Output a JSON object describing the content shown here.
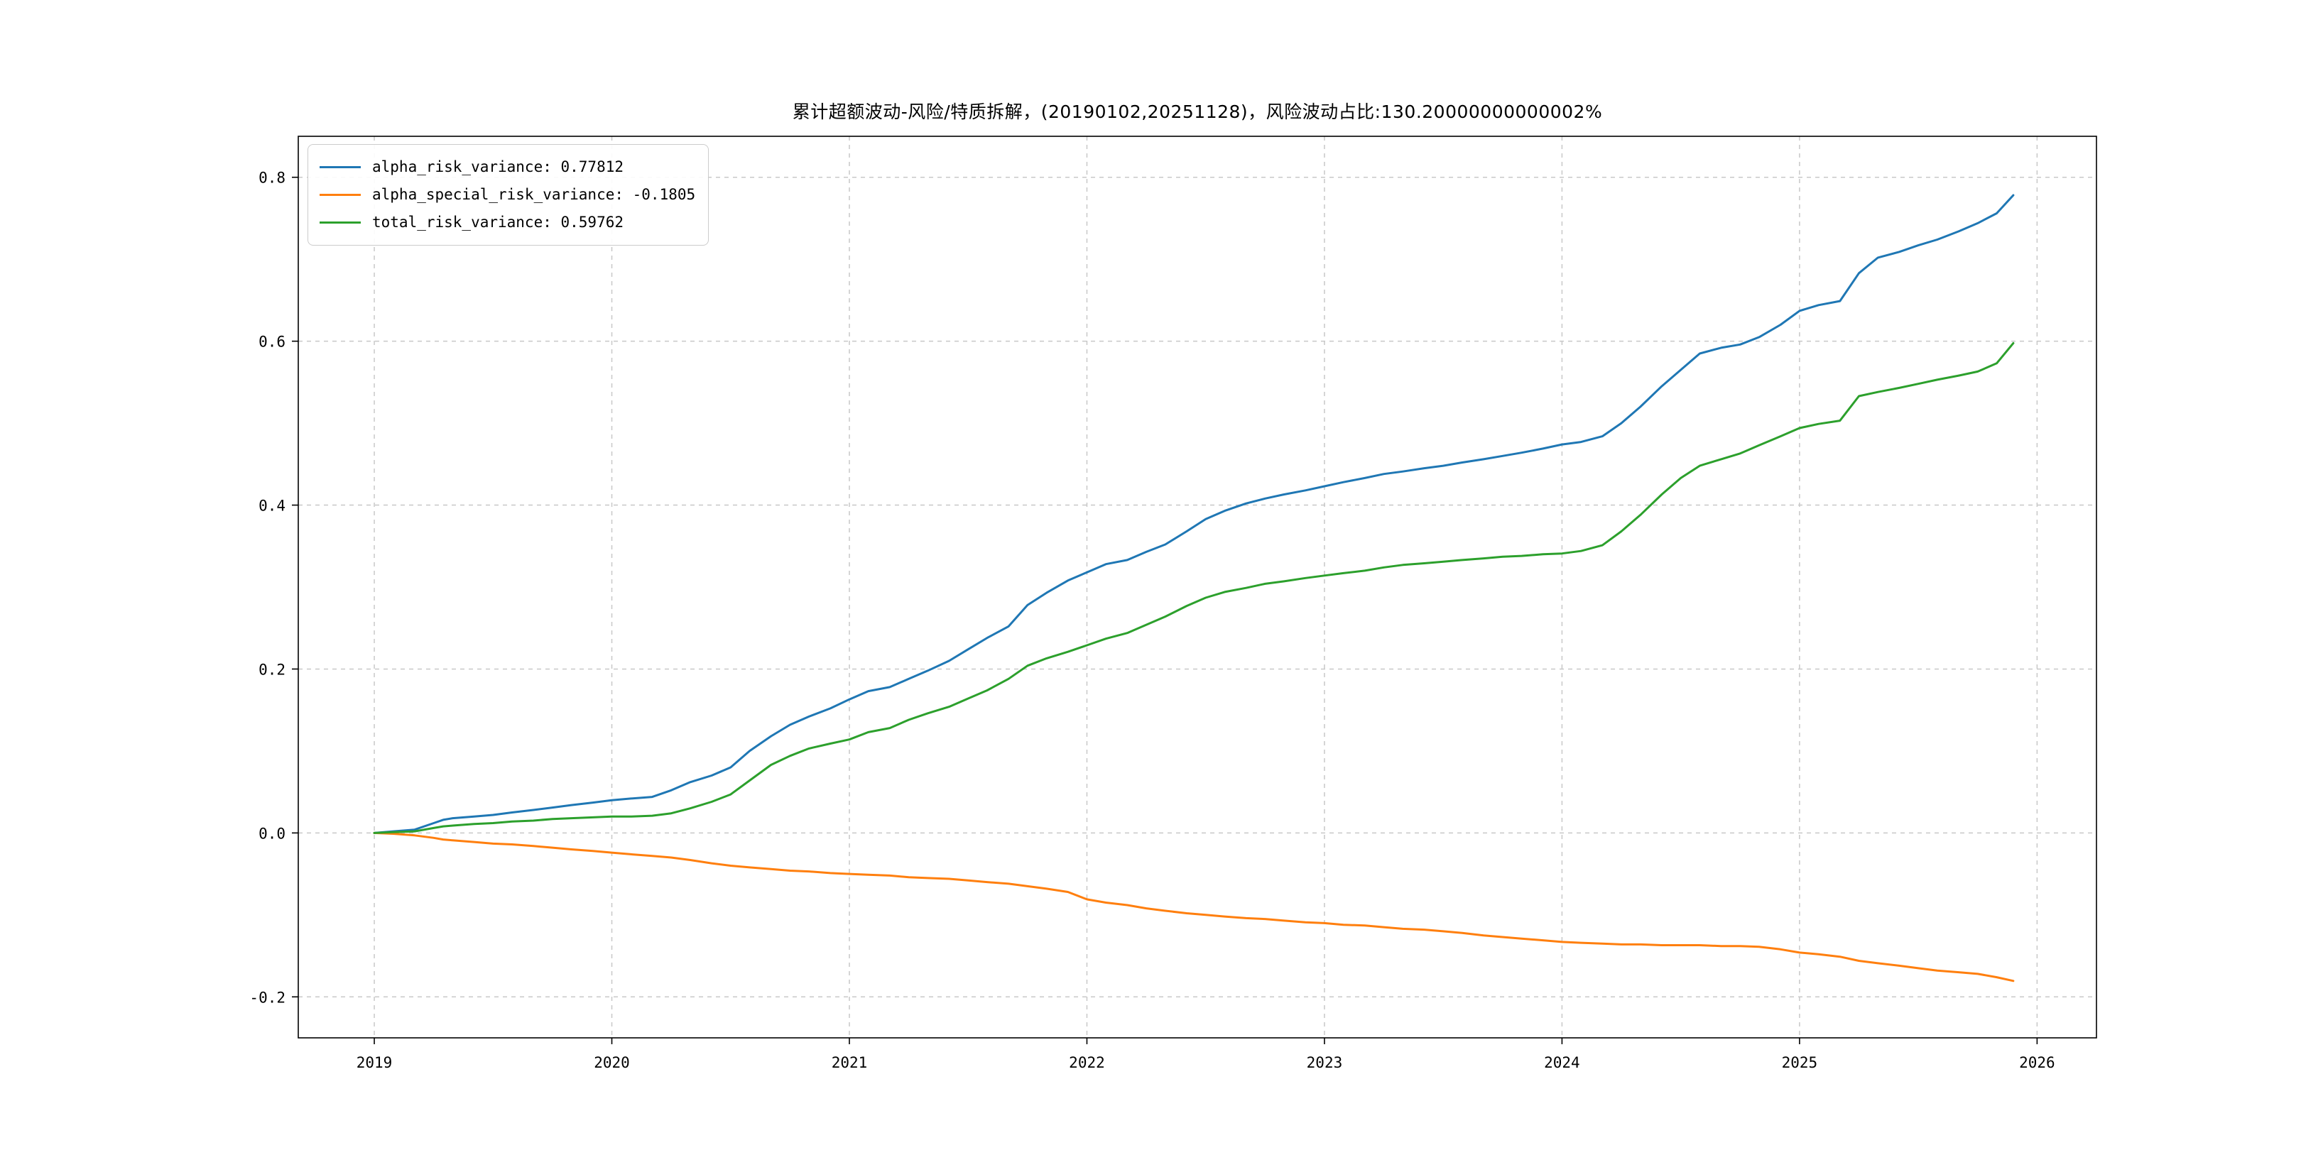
{
  "page": {
    "background": "#ffffff"
  },
  "chart_data": {
    "type": "line",
    "title": "累计超额波动-风险/特质拆解，(20190102,20251128)，风险波动占比:130.20000000000002%",
    "xlabel": "",
    "ylabel": "",
    "xlim": [
      2018.68,
      2026.25
    ],
    "ylim": [
      -0.25,
      0.85
    ],
    "x_ticks": [
      2019,
      2020,
      2021,
      2022,
      2023,
      2024,
      2025,
      2026
    ],
    "x_tick_labels": [
      "2019",
      "2020",
      "2021",
      "2022",
      "2023",
      "2024",
      "2025",
      "2026"
    ],
    "y_ticks": [
      -0.2,
      0.0,
      0.2,
      0.4,
      0.6,
      0.8
    ],
    "y_tick_labels": [
      "-0.2",
      "0.0",
      "0.2",
      "0.4",
      "0.6",
      "0.8"
    ],
    "grid": true,
    "grid_style": "dashed",
    "grid_color": "#c8c8c8",
    "legend_position": "upper-left",
    "date_range": "20190102-20251128",
    "risk_ratio_pct": "130.20000000000002%",
    "series": [
      {
        "name": "alpha_risk_variance",
        "legend_label": "alpha_risk_variance: 0.77812",
        "final_value": 0.77812,
        "color": "#1f77b4",
        "x": [
          2019.0,
          2019.08,
          2019.17,
          2019.25,
          2019.29,
          2019.33,
          2019.42,
          2019.5,
          2019.58,
          2019.67,
          2019.75,
          2019.83,
          2019.92,
          2020.0,
          2020.08,
          2020.17,
          2020.25,
          2020.33,
          2020.42,
          2020.5,
          2020.58,
          2020.67,
          2020.75,
          2020.83,
          2020.92,
          2021.0,
          2021.08,
          2021.17,
          2021.25,
          2021.33,
          2021.42,
          2021.5,
          2021.58,
          2021.67,
          2021.75,
          2021.83,
          2021.92,
          2022.0,
          2022.08,
          2022.17,
          2022.25,
          2022.33,
          2022.42,
          2022.5,
          2022.58,
          2022.67,
          2022.75,
          2022.83,
          2022.92,
          2023.0,
          2023.08,
          2023.17,
          2023.25,
          2023.33,
          2023.42,
          2023.5,
          2023.58,
          2023.67,
          2023.75,
          2023.83,
          2023.92,
          2024.0,
          2024.08,
          2024.17,
          2024.25,
          2024.33,
          2024.42,
          2024.5,
          2024.58,
          2024.67,
          2024.75,
          2024.83,
          2024.92,
          2025.0,
          2025.08,
          2025.17,
          2025.25,
          2025.33,
          2025.42,
          2025.5,
          2025.58,
          2025.67,
          2025.75,
          2025.83,
          2025.9
        ],
        "y": [
          0.0,
          0.002,
          0.004,
          0.012,
          0.016,
          0.018,
          0.02,
          0.022,
          0.025,
          0.028,
          0.031,
          0.034,
          0.037,
          0.04,
          0.042,
          0.044,
          0.052,
          0.062,
          0.07,
          0.08,
          0.1,
          0.118,
          0.132,
          0.142,
          0.152,
          0.163,
          0.173,
          0.178,
          0.188,
          0.198,
          0.21,
          0.224,
          0.238,
          0.252,
          0.278,
          0.293,
          0.308,
          0.318,
          0.328,
          0.333,
          0.343,
          0.352,
          0.368,
          0.383,
          0.393,
          0.402,
          0.408,
          0.413,
          0.418,
          0.423,
          0.428,
          0.433,
          0.438,
          0.441,
          0.445,
          0.448,
          0.452,
          0.456,
          0.46,
          0.464,
          0.469,
          0.474,
          0.477,
          0.484,
          0.5,
          0.52,
          0.545,
          0.565,
          0.585,
          0.592,
          0.596,
          0.605,
          0.62,
          0.637,
          0.644,
          0.649,
          0.683,
          0.702,
          0.709,
          0.717,
          0.724,
          0.734,
          0.744,
          0.756,
          0.77812
        ]
      },
      {
        "name": "alpha_special_risk_variance",
        "legend_label": "alpha_special_risk_variance: -0.1805",
        "final_value": -0.1805,
        "color": "#ff7f0e",
        "x": [
          2019.0,
          2019.08,
          2019.17,
          2019.25,
          2019.29,
          2019.33,
          2019.42,
          2019.5,
          2019.58,
          2019.67,
          2019.75,
          2019.83,
          2019.92,
          2020.0,
          2020.08,
          2020.17,
          2020.25,
          2020.33,
          2020.42,
          2020.5,
          2020.58,
          2020.67,
          2020.75,
          2020.83,
          2020.92,
          2021.0,
          2021.08,
          2021.17,
          2021.25,
          2021.33,
          2021.42,
          2021.5,
          2021.58,
          2021.67,
          2021.75,
          2021.83,
          2021.92,
          2022.0,
          2022.08,
          2022.17,
          2022.25,
          2022.33,
          2022.42,
          2022.5,
          2022.58,
          2022.67,
          2022.75,
          2022.83,
          2022.92,
          2023.0,
          2023.08,
          2023.17,
          2023.25,
          2023.33,
          2023.42,
          2023.5,
          2023.58,
          2023.67,
          2023.75,
          2023.83,
          2023.92,
          2024.0,
          2024.08,
          2024.17,
          2024.25,
          2024.33,
          2024.42,
          2024.5,
          2024.58,
          2024.67,
          2024.75,
          2024.83,
          2024.92,
          2025.0,
          2025.08,
          2025.17,
          2025.25,
          2025.33,
          2025.42,
          2025.5,
          2025.58,
          2025.67,
          2025.75,
          2025.83,
          2025.9
        ],
        "y": [
          0.0,
          -0.001,
          -0.003,
          -0.006,
          -0.008,
          -0.009,
          -0.011,
          -0.013,
          -0.014,
          -0.016,
          -0.018,
          -0.02,
          -0.022,
          -0.024,
          -0.026,
          -0.028,
          -0.03,
          -0.033,
          -0.037,
          -0.04,
          -0.042,
          -0.044,
          -0.046,
          -0.047,
          -0.049,
          -0.05,
          -0.051,
          -0.052,
          -0.054,
          -0.055,
          -0.056,
          -0.058,
          -0.06,
          -0.062,
          -0.065,
          -0.068,
          -0.072,
          -0.081,
          -0.085,
          -0.088,
          -0.092,
          -0.095,
          -0.098,
          -0.1,
          -0.102,
          -0.104,
          -0.105,
          -0.107,
          -0.109,
          -0.11,
          -0.112,
          -0.113,
          -0.115,
          -0.117,
          -0.118,
          -0.12,
          -0.122,
          -0.125,
          -0.127,
          -0.129,
          -0.131,
          -0.133,
          -0.134,
          -0.135,
          -0.136,
          -0.136,
          -0.137,
          -0.137,
          -0.137,
          -0.138,
          -0.138,
          -0.139,
          -0.142,
          -0.146,
          -0.148,
          -0.151,
          -0.156,
          -0.159,
          -0.162,
          -0.165,
          -0.168,
          -0.17,
          -0.172,
          -0.176,
          -0.1805
        ]
      },
      {
        "name": "total_risk_variance",
        "legend_label": "total_risk_variance: 0.59762",
        "final_value": 0.59762,
        "color": "#2ca02c",
        "x": [
          2019.0,
          2019.08,
          2019.17,
          2019.25,
          2019.29,
          2019.33,
          2019.42,
          2019.5,
          2019.58,
          2019.67,
          2019.75,
          2019.83,
          2019.92,
          2020.0,
          2020.08,
          2020.17,
          2020.25,
          2020.33,
          2020.42,
          2020.5,
          2020.58,
          2020.67,
          2020.75,
          2020.83,
          2020.92,
          2021.0,
          2021.08,
          2021.17,
          2021.25,
          2021.33,
          2021.42,
          2021.5,
          2021.58,
          2021.67,
          2021.75,
          2021.83,
          2021.92,
          2022.0,
          2022.08,
          2022.17,
          2022.25,
          2022.33,
          2022.42,
          2022.5,
          2022.58,
          2022.67,
          2022.75,
          2022.83,
          2022.92,
          2023.0,
          2023.08,
          2023.17,
          2023.25,
          2023.33,
          2023.42,
          2023.5,
          2023.58,
          2023.67,
          2023.75,
          2023.83,
          2023.92,
          2024.0,
          2024.08,
          2024.17,
          2024.25,
          2024.33,
          2024.42,
          2024.5,
          2024.58,
          2024.67,
          2024.75,
          2024.83,
          2024.92,
          2025.0,
          2025.08,
          2025.17,
          2025.25,
          2025.33,
          2025.42,
          2025.5,
          2025.58,
          2025.67,
          2025.75,
          2025.83,
          2025.9
        ],
        "y": [
          0.0,
          0.001,
          0.002,
          0.006,
          0.008,
          0.009,
          0.011,
          0.012,
          0.014,
          0.015,
          0.017,
          0.018,
          0.019,
          0.02,
          0.02,
          0.021,
          0.024,
          0.03,
          0.038,
          0.047,
          0.064,
          0.083,
          0.094,
          0.103,
          0.109,
          0.114,
          0.123,
          0.128,
          0.138,
          0.146,
          0.154,
          0.164,
          0.174,
          0.188,
          0.204,
          0.213,
          0.221,
          0.229,
          0.237,
          0.244,
          0.254,
          0.264,
          0.277,
          0.287,
          0.294,
          0.299,
          0.304,
          0.307,
          0.311,
          0.314,
          0.317,
          0.32,
          0.324,
          0.327,
          0.329,
          0.331,
          0.333,
          0.335,
          0.337,
          0.338,
          0.34,
          0.341,
          0.344,
          0.351,
          0.368,
          0.388,
          0.413,
          0.433,
          0.448,
          0.456,
          0.463,
          0.473,
          0.484,
          0.494,
          0.499,
          0.503,
          0.533,
          0.538,
          0.543,
          0.548,
          0.553,
          0.558,
          0.563,
          0.573,
          0.59762
        ]
      }
    ]
  }
}
